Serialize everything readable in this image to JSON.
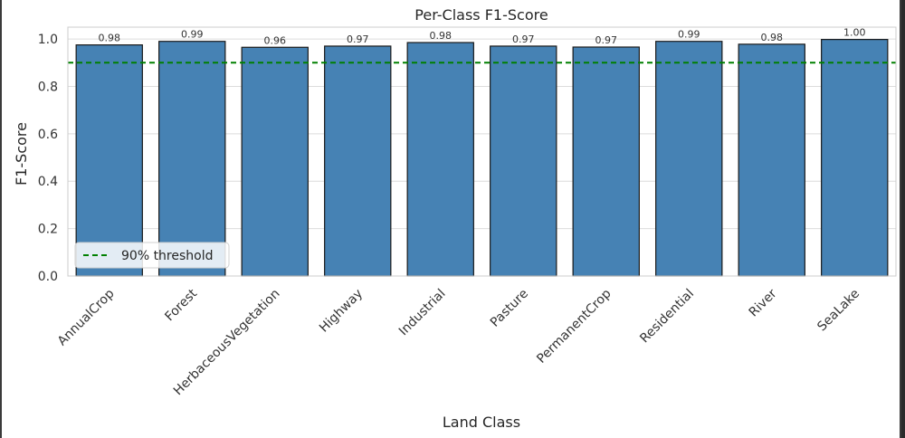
{
  "chart_data": {
    "type": "bar",
    "title": "Per-Class F1-Score",
    "xlabel": "Land Class",
    "ylabel": "F1-Score",
    "categories": [
      "AnnualCrop",
      "Forest",
      "HerbaceousVegetation",
      "Highway",
      "Industrial",
      "Pasture",
      "PermanentCrop",
      "Residential",
      "River",
      "SeaLake"
    ],
    "values": [
      0.975,
      0.99,
      0.965,
      0.97,
      0.985,
      0.97,
      0.966,
      0.99,
      0.978,
      0.998
    ],
    "data_labels": [
      "0.98",
      "0.99",
      "0.96",
      "0.97",
      "0.98",
      "0.97",
      "0.97",
      "0.99",
      "0.98",
      "1.00"
    ],
    "ylim": [
      0,
      1.05
    ],
    "yticks": [
      0.0,
      0.2,
      0.4,
      0.6,
      0.8,
      1.0
    ],
    "ytick_labels": [
      "0.0",
      "0.2",
      "0.4",
      "0.6",
      "0.8",
      "1.0"
    ],
    "grid": "horizontal",
    "bar_color": "#4682b4",
    "bar_edge_color": "#1a1a1a",
    "threshold": {
      "value": 0.9,
      "label": "90% threshold",
      "color": "#008000",
      "style": "dashed"
    },
    "legend_position": "lower-left"
  }
}
